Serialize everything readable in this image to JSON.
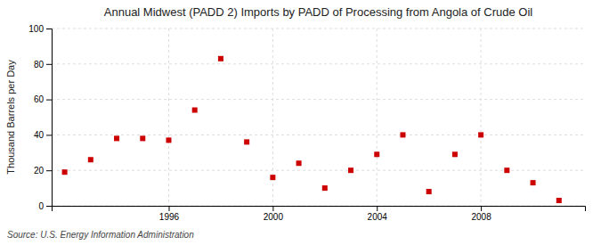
{
  "chart_data": {
    "type": "scatter",
    "title": "Annual Midwest (PADD 2) Imports by PADD of Processing from Angola of Crude Oil",
    "y_label": "Thousand Barrels per Day",
    "source": "Source: U.S. Energy Information Administration",
    "x": [
      1992,
      1993,
      1994,
      1995,
      1996,
      1997,
      1998,
      1999,
      2000,
      2001,
      2002,
      2003,
      2004,
      2005,
      2006,
      2007,
      2008,
      2009,
      2010,
      2011
    ],
    "values": [
      19,
      26,
      38,
      38,
      37,
      54,
      83,
      36,
      16,
      24,
      10,
      20,
      29,
      40,
      8,
      29,
      40,
      20,
      13,
      3
    ],
    "color": "#cc0000",
    "marker": "square",
    "xlim": [
      1991.5,
      2012
    ],
    "xticks": [
      1996,
      2000,
      2004,
      2008
    ],
    "ylim": [
      0,
      100
    ],
    "yticks": [
      0,
      20,
      40,
      60,
      80,
      100
    ],
    "grid": true
  }
}
